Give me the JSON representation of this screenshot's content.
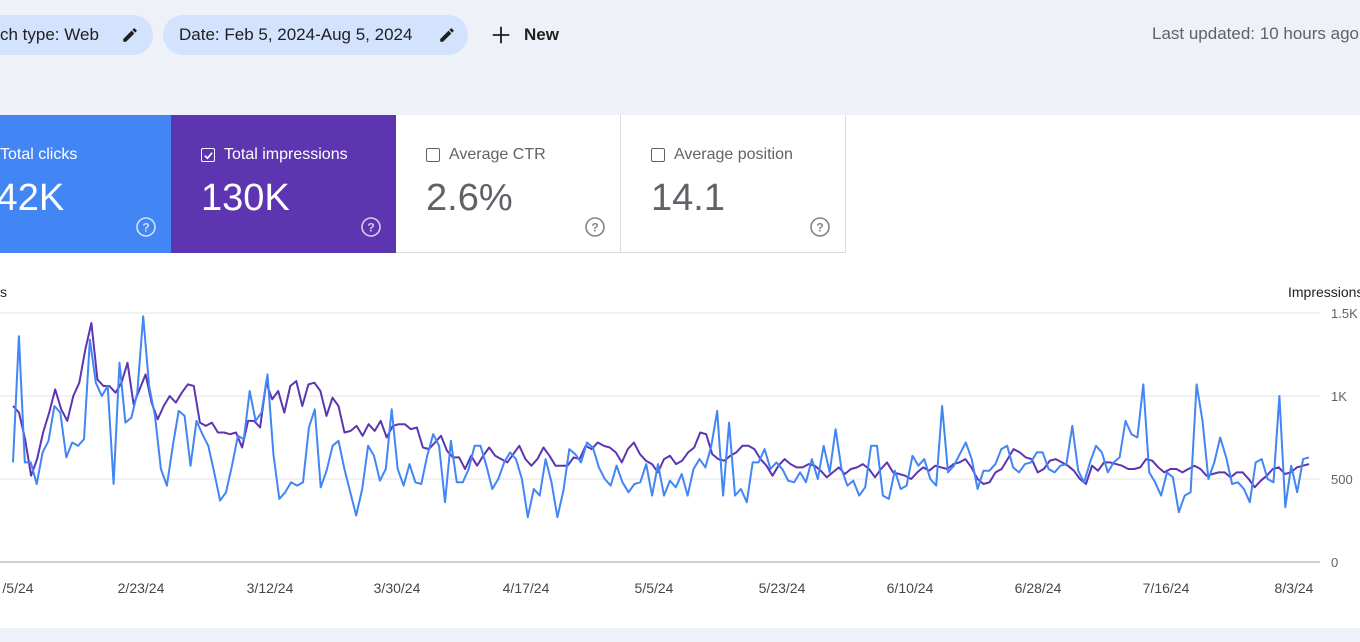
{
  "filters": {
    "search_type": "ch type: Web",
    "date": "Date: Feb 5, 2024-Aug 5, 2024",
    "new_label": "New"
  },
  "last_updated": "Last updated: 10 hours ago",
  "metrics": {
    "clicks": {
      "label": "Total clicks",
      "value": ".42K",
      "checked": true,
      "color": "#4285f4"
    },
    "impressions": {
      "label": "Total impressions",
      "value": "130K",
      "checked": true,
      "color": "#5e35b1"
    },
    "ctr": {
      "label": "Average CTR",
      "value": "2.6%",
      "checked": false
    },
    "position": {
      "label": "Average position",
      "value": "14.1",
      "checked": false
    }
  },
  "chart_data": {
    "type": "line",
    "left_axis_label": "s",
    "right_axis_label": "Impressions",
    "right_ticks": [
      "0",
      "500",
      "1K",
      "1.5K"
    ],
    "right_ylim": [
      0,
      1500
    ],
    "x_tick_labels": [
      "/5/24",
      "2/23/24",
      "3/12/24",
      "3/30/24",
      "4/17/24",
      "5/5/24",
      "5/23/24",
      "6/10/24",
      "6/28/24",
      "7/16/24",
      "8/3/24"
    ],
    "grid": true,
    "series": [
      {
        "name": "Total impressions",
        "color": "#5e35b1",
        "axis": "right",
        "values": [
          940,
          900,
          740,
          520,
          620,
          780,
          900,
          1040,
          920,
          850,
          1000,
          1080,
          1280,
          1440,
          1100,
          1060,
          1060,
          1020,
          1080,
          1200,
          950,
          1040,
          1130,
          960,
          860,
          940,
          1000,
          960,
          1020,
          1070,
          1060,
          840,
          820,
          840,
          780,
          780,
          770,
          780,
          690,
          850,
          850,
          810,
          1080,
          980,
          1030,
          900,
          1060,
          1090,
          940,
          1070,
          1080,
          1030,
          880,
          990,
          940,
          780,
          790,
          820,
          760,
          830,
          790,
          850,
          750,
          820,
          830,
          830,
          800,
          810,
          690,
          680,
          720,
          760,
          670,
          630,
          630,
          560,
          640,
          580,
          640,
          690,
          640,
          620,
          600,
          650,
          700,
          620,
          580,
          620,
          690,
          640,
          580,
          580,
          580,
          630,
          620,
          700,
          680,
          720,
          700,
          690,
          660,
          600,
          680,
          720,
          650,
          610,
          590,
          540,
          620,
          640,
          590,
          610,
          660,
          690,
          780,
          770,
          650,
          620,
          610,
          640,
          660,
          700,
          700,
          680,
          620,
          580,
          520,
          580,
          620,
          590,
          570,
          570,
          590,
          580,
          550,
          510,
          540,
          570,
          530,
          560,
          570,
          590,
          560,
          510,
          560,
          600,
          540,
          530,
          520,
          500,
          540,
          570,
          550,
          580,
          570,
          560,
          590,
          600,
          620,
          570,
          500,
          470,
          480,
          540,
          560,
          620,
          680,
          660,
          630,
          620,
          540,
          560,
          610,
          620,
          600,
          580,
          550,
          500,
          470,
          580,
          550,
          600,
          600,
          590,
          580,
          560,
          560,
          570,
          620,
          610,
          570,
          540,
          560,
          560,
          540,
          560,
          580,
          560,
          520,
          530,
          540,
          540,
          510,
          540,
          540,
          500,
          450,
          490,
          520,
          560,
          570,
          530,
          540,
          570,
          580,
          590
        ]
      },
      {
        "name": "Total clicks",
        "color": "#4285f4",
        "axis": "left",
        "values": [
          600,
          1360,
          600,
          600,
          470,
          660,
          730,
          940,
          900,
          630,
          720,
          700,
          740,
          1340,
          1080,
          1000,
          1060,
          470,
          1200,
          840,
          870,
          1020,
          1480,
          1060,
          880,
          560,
          460,
          700,
          910,
          880,
          580,
          850,
          770,
          700,
          540,
          370,
          420,
          580,
          760,
          740,
          1030,
          850,
          900,
          1130,
          650,
          380,
          420,
          480,
          460,
          480,
          810,
          920,
          450,
          550,
          700,
          730,
          560,
          420,
          280,
          440,
          700,
          640,
          490,
          560,
          920,
          560,
          460,
          590,
          480,
          470,
          640,
          770,
          700,
          360,
          730,
          480,
          480,
          560,
          700,
          700,
          580,
          440,
          500,
          600,
          660,
          620,
          500,
          270,
          440,
          400,
          620,
          480,
          270,
          430,
          680,
          650,
          600,
          720,
          690,
          570,
          500,
          460,
          580,
          480,
          420,
          470,
          480,
          590,
          400,
          590,
          400,
          490,
          450,
          530,
          400,
          560,
          620,
          570,
          700,
          910,
          400,
          840,
          400,
          440,
          360,
          600,
          600,
          680,
          560,
          600,
          560,
          490,
          480,
          540,
          480,
          620,
          500,
          700,
          540,
          800,
          560,
          460,
          490,
          400,
          450,
          700,
          700,
          400,
          380,
          550,
          440,
          460,
          640,
          580,
          620,
          500,
          460,
          940,
          540,
          580,
          650,
          720,
          620,
          440,
          550,
          550,
          590,
          680,
          700,
          570,
          540,
          590,
          600,
          660,
          660,
          560,
          540,
          580,
          590,
          820,
          550,
          480,
          600,
          700,
          660,
          540,
          600,
          630,
          850,
          770,
          750,
          1070,
          540,
          480,
          400,
          540,
          510,
          300,
          400,
          420,
          1070,
          850,
          500,
          600,
          750,
          630,
          470,
          480,
          440,
          360,
          600,
          620,
          500,
          480,
          1000,
          330,
          580,
          420,
          620,
          630
        ]
      }
    ]
  }
}
